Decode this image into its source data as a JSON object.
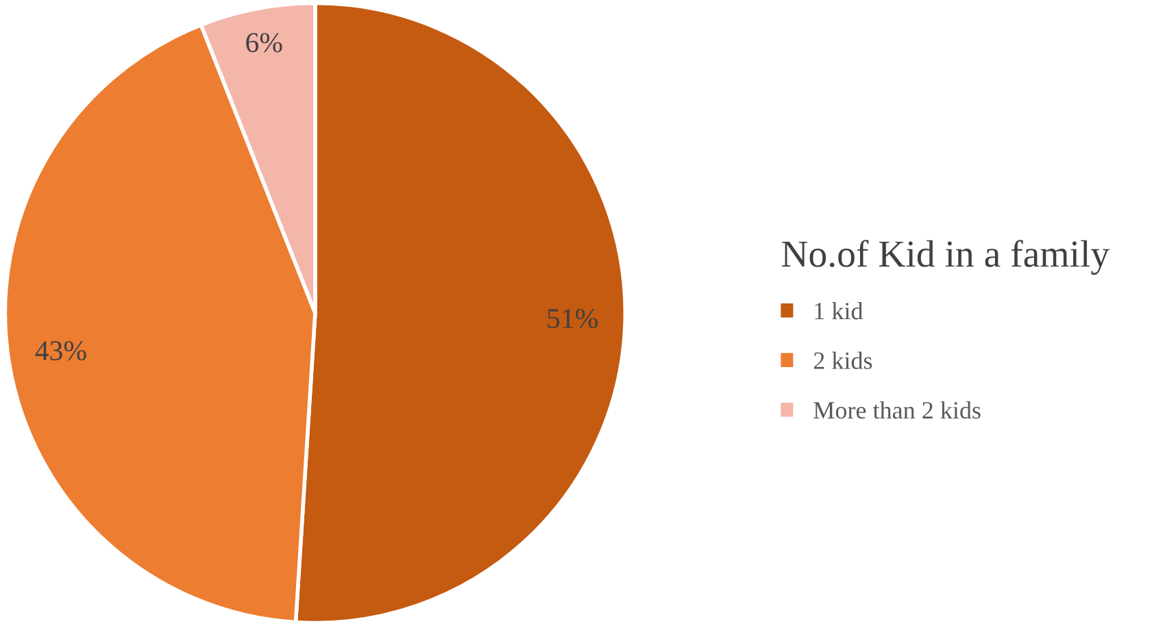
{
  "chart_data": {
    "type": "pie",
    "legend_title": "No.of Kid in a family",
    "categories": [
      "1 kid",
      "2 kids",
      "More than 2 kids"
    ],
    "values": [
      51,
      43,
      6
    ],
    "colors": [
      "#c55a11",
      "#ed7d31",
      "#f4b6a8"
    ],
    "value_labels": [
      "51%",
      "43%",
      "6%"
    ],
    "legend": "right"
  }
}
